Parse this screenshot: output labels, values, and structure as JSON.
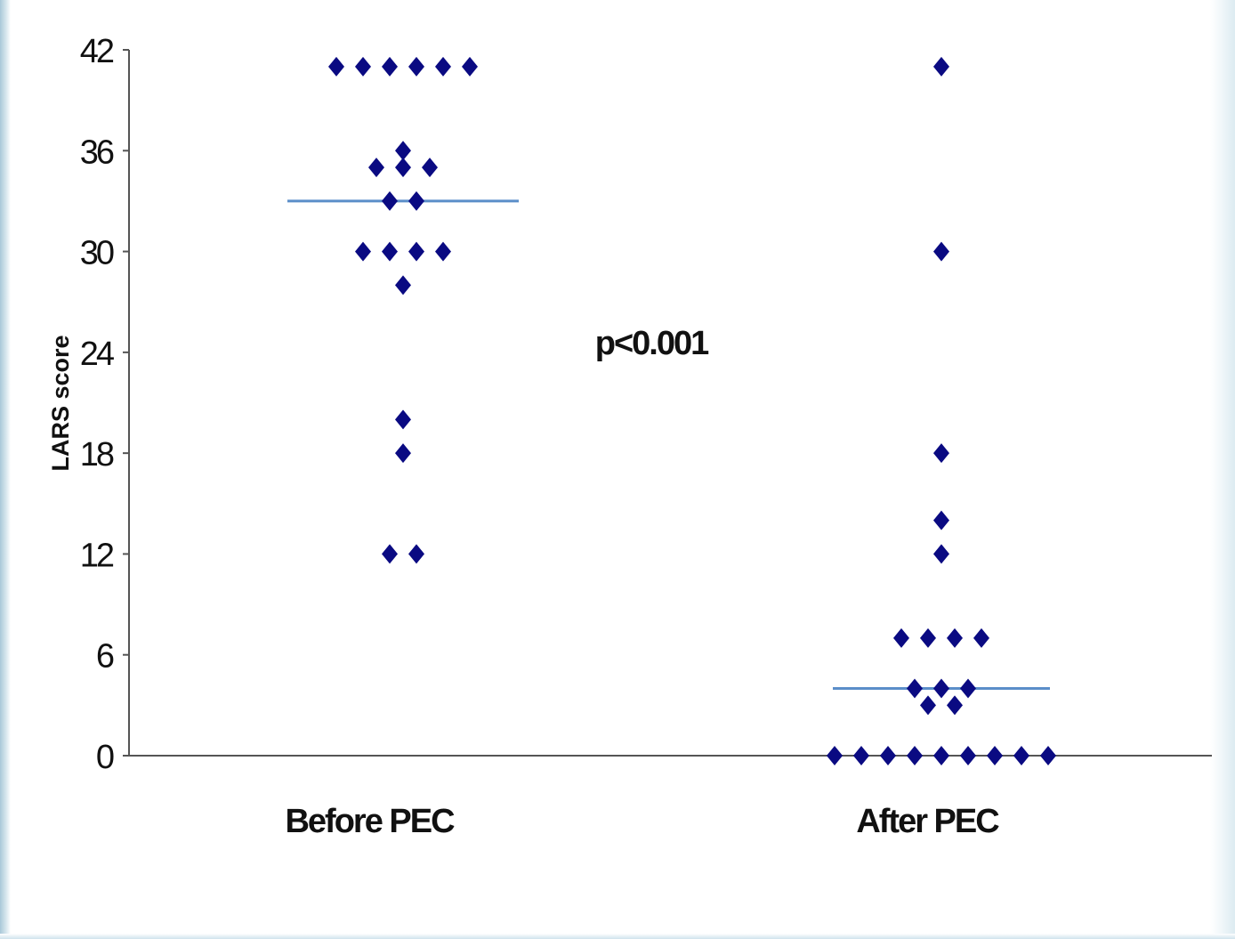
{
  "chart_data": {
    "type": "scatter",
    "ylabel": "LARS score",
    "categories": [
      "Before PEC",
      "After PEC"
    ],
    "yticks": [
      0,
      6,
      12,
      18,
      24,
      30,
      36,
      42
    ],
    "ylim": [
      0,
      42
    ],
    "annotation": "p<0.001",
    "grid": false,
    "marker_color": "#0a0a82",
    "median_line_color": "#5b8ec9",
    "series": [
      {
        "values": [
          41,
          41,
          41,
          41,
          41,
          41,
          36,
          35,
          35,
          35,
          33,
          33,
          30,
          30,
          30,
          30,
          28,
          20,
          18,
          12,
          12
        ],
        "median": 33
      },
      {
        "values": [
          41,
          30,
          18,
          14,
          12,
          7,
          7,
          7,
          7,
          4,
          4,
          4,
          3,
          3,
          0,
          0,
          0,
          0,
          0,
          0,
          0,
          0,
          0
        ],
        "median": 4
      }
    ]
  }
}
